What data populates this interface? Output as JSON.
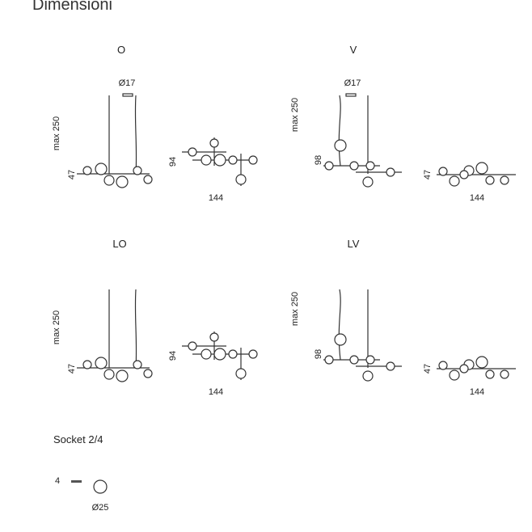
{
  "title": "Dimensioni",
  "panels": [
    {
      "label": "O",
      "side": {
        "diameter": "Ø17",
        "height": "max 250",
        "drop": 47
      },
      "top": {
        "depth": 94,
        "width": 144
      }
    },
    {
      "label": "V",
      "side": {
        "diameter": "Ø17",
        "height": "max 250",
        "drop": 98
      },
      "top": {
        "depth": 47,
        "width": 144
      }
    },
    {
      "label": "LO",
      "side": {
        "height": "max 250",
        "drop": 47
      },
      "top": {
        "depth": 94,
        "width": 144
      }
    },
    {
      "label": "LV",
      "side": {
        "height": "max 250",
        "drop": 98
      },
      "top": {
        "depth": 47,
        "width": 144
      }
    }
  ],
  "socket": {
    "label": "Socket 2/4",
    "height": 4,
    "diameter": "Ø25"
  }
}
